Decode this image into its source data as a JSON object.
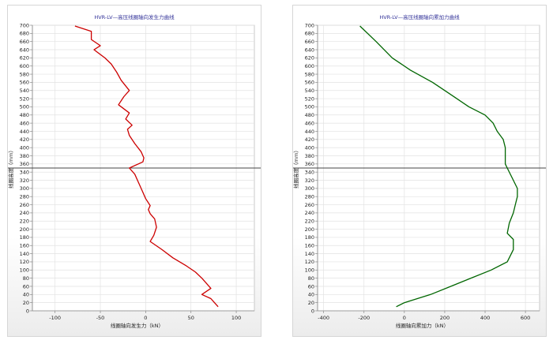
{
  "chart_data": [
    {
      "type": "line",
      "title": "HVR-LV—高压线圈轴向发生力曲线",
      "xlabel": "线圈轴向发生力（kN）",
      "ylabel": "线圈高度（mm）",
      "xlim": [
        -125,
        120
      ],
      "ylim": [
        0,
        700
      ],
      "xticks": [
        -100,
        -50,
        0,
        50,
        100
      ],
      "yticks": [
        0,
        20,
        40,
        60,
        80,
        100,
        120,
        140,
        160,
        180,
        200,
        220,
        240,
        260,
        280,
        300,
        320,
        340,
        360,
        380,
        400,
        420,
        440,
        460,
        480,
        500,
        520,
        540,
        560,
        580,
        600,
        620,
        640,
        660,
        680,
        700
      ],
      "grid": true,
      "reference_line_y": 350,
      "series": [
        {
          "color": "#cc0000",
          "points": [
            [
              -78,
              698
            ],
            [
              -60,
              685
            ],
            [
              -60,
              665
            ],
            [
              -50,
              650
            ],
            [
              -57,
              640
            ],
            [
              -45,
              620
            ],
            [
              -38,
              605
            ],
            [
              -32,
              585
            ],
            [
              -27,
              565
            ],
            [
              -18,
              540
            ],
            [
              -24,
              525
            ],
            [
              -30,
              505
            ],
            [
              -18,
              485
            ],
            [
              -22,
              470
            ],
            [
              -15,
              455
            ],
            [
              -20,
              445
            ],
            [
              -18,
              430
            ],
            [
              -12,
              410
            ],
            [
              -5,
              390
            ],
            [
              -2,
              375
            ],
            [
              -3,
              365
            ],
            [
              -18,
              350
            ],
            [
              -12,
              335
            ],
            [
              -8,
              315
            ],
            [
              -4,
              295
            ],
            [
              0,
              275
            ],
            [
              5,
              258
            ],
            [
              3,
              248
            ],
            [
              5,
              238
            ],
            [
              10,
              225
            ],
            [
              12,
              205
            ],
            [
              9,
              185
            ],
            [
              5,
              170
            ],
            [
              18,
              150
            ],
            [
              30,
              130
            ],
            [
              45,
              110
            ],
            [
              55,
              95
            ],
            [
              62,
              80
            ],
            [
              68,
              65
            ],
            [
              72,
              55
            ],
            [
              62,
              40
            ],
            [
              72,
              30
            ],
            [
              80,
              10
            ]
          ]
        }
      ]
    },
    {
      "type": "line",
      "title": "HVR-LV—高压线圈轴向累加力曲线",
      "xlabel": "线圈轴向累加力（kN）",
      "ylabel": "线圈高度（mm）",
      "xlim": [
        -430,
        670
      ],
      "ylim": [
        0,
        700
      ],
      "xticks": [
        -400,
        -200,
        0,
        200,
        400,
        600
      ],
      "yticks": [
        0,
        20,
        40,
        60,
        80,
        100,
        120,
        140,
        160,
        180,
        200,
        220,
        240,
        260,
        280,
        300,
        320,
        340,
        360,
        380,
        400,
        420,
        440,
        460,
        480,
        500,
        520,
        540,
        560,
        580,
        600,
        620,
        640,
        660,
        680,
        700
      ],
      "grid": true,
      "reference_line_y": 350,
      "series": [
        {
          "color": "#006600",
          "points": [
            [
              -220,
              698
            ],
            [
              -140,
              660
            ],
            [
              -60,
              620
            ],
            [
              30,
              590
            ],
            [
              140,
              560
            ],
            [
              200,
              540
            ],
            [
              260,
              520
            ],
            [
              320,
              500
            ],
            [
              400,
              480
            ],
            [
              440,
              460
            ],
            [
              460,
              440
            ],
            [
              490,
              420
            ],
            [
              500,
              400
            ],
            [
              500,
              380
            ],
            [
              500,
              360
            ],
            [
              510,
              350
            ],
            [
              540,
              320
            ],
            [
              560,
              300
            ],
            [
              560,
              280
            ],
            [
              550,
              260
            ],
            [
              540,
              240
            ],
            [
              520,
              215
            ],
            [
              510,
              190
            ],
            [
              540,
              175
            ],
            [
              540,
              150
            ],
            [
              510,
              120
            ],
            [
              430,
              100
            ],
            [
              330,
              80
            ],
            [
              230,
              60
            ],
            [
              130,
              40
            ],
            [
              0,
              20
            ],
            [
              -40,
              10
            ]
          ]
        }
      ]
    }
  ]
}
